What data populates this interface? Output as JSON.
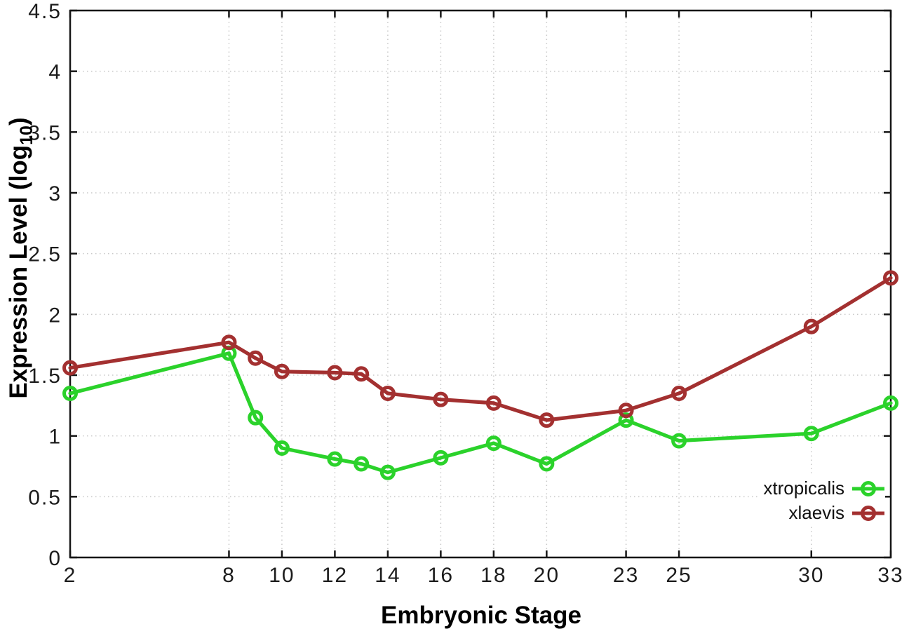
{
  "chart_data": {
    "type": "line",
    "title": "",
    "xlabel": "Embryonic Stage",
    "ylabel": "Expression Level (log10)",
    "ylabel_parts": {
      "main": "Expression Level (log",
      "sub": "10",
      "end": ")"
    },
    "x": [
      2,
      8,
      9,
      10,
      12,
      13,
      14,
      16,
      18,
      20,
      23,
      25,
      30,
      33
    ],
    "series": [
      {
        "name": "xtropicalis",
        "color": "#2bd22b",
        "values": [
          1.35,
          1.68,
          1.15,
          0.9,
          0.81,
          0.77,
          0.7,
          0.82,
          0.94,
          0.77,
          1.13,
          0.96,
          1.02,
          1.27
        ]
      },
      {
        "name": "xlaevis",
        "color": "#a33030",
        "values": [
          1.56,
          1.77,
          1.64,
          1.53,
          1.52,
          1.51,
          1.35,
          1.3,
          1.27,
          1.13,
          1.21,
          1.35,
          1.9,
          2.3
        ]
      }
    ],
    "xlim": [
      2,
      33
    ],
    "ylim": [
      0,
      4.5
    ],
    "xticks": [
      2,
      8,
      10,
      12,
      14,
      16,
      18,
      20,
      23,
      25,
      30,
      33
    ],
    "yticks": [
      "0",
      "0.5",
      "1",
      "1.5",
      "2",
      "2.5",
      "3",
      "3.5",
      "4",
      "4.5"
    ],
    "grid": true,
    "legend_position": "bottom-right",
    "marker": "open-circle",
    "colors": {
      "grid": "#c8c8c8",
      "axis": "#161616",
      "tick_text": "#1c1c1c"
    }
  }
}
